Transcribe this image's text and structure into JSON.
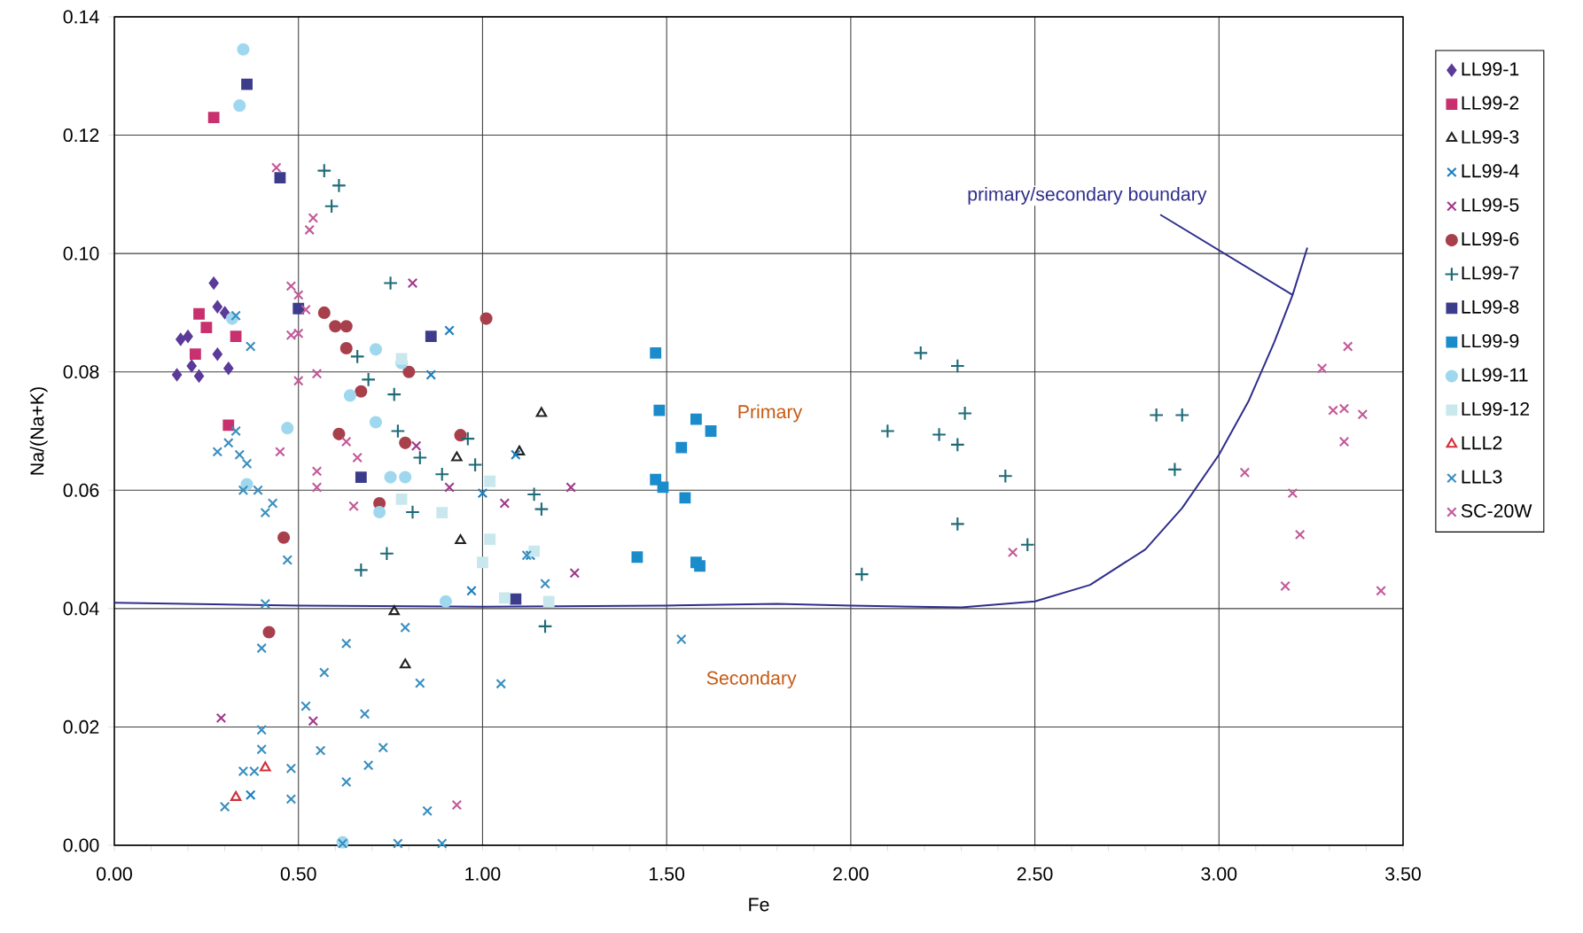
{
  "chart_data": {
    "type": "scatter",
    "xlabel": "Fe",
    "ylabel": "Na/(Na+K)",
    "xlim": [
      0,
      3.5
    ],
    "ylim": [
      0,
      0.14
    ],
    "xticks": [
      {
        "value": 0,
        "label": "0.00"
      },
      {
        "value": 0.5,
        "label": "0.50"
      },
      {
        "value": 1,
        "label": "1.00"
      },
      {
        "value": 1.5,
        "label": "1.50"
      },
      {
        "value": 2,
        "label": "2.00"
      },
      {
        "value": 2.5,
        "label": "2.50"
      },
      {
        "value": 3,
        "label": "3.00"
      },
      {
        "value": 3.5,
        "label": "3.50"
      }
    ],
    "yticks": [
      {
        "value": 0,
        "label": "0.00"
      },
      {
        "value": 0.02,
        "label": "0.02"
      },
      {
        "value": 0.04,
        "label": "0.04"
      },
      {
        "value": 0.06,
        "label": "0.06"
      },
      {
        "value": 0.08,
        "label": "0.08"
      },
      {
        "value": 0.1,
        "label": "0.10"
      },
      {
        "value": 0.12,
        "label": "0.12"
      },
      {
        "value": 0.14,
        "label": "0.14"
      }
    ],
    "grid": true,
    "legend": "right",
    "annotations": [
      {
        "text": "primary/secondary boundary",
        "x": 3.2,
        "y": 0.093
      },
      "Primary",
      "Secondary"
    ],
    "series": [
      {
        "name": "LL99-1",
        "color": "#5b3a9a",
        "marker": "diamond",
        "x": [
          0.27,
          0.28,
          0.3,
          0.18,
          0.2,
          0.21,
          0.28,
          0.17,
          0.23,
          0.31
        ],
        "values": [
          0.095,
          0.091,
          0.09,
          0.0855,
          0.086,
          0.081,
          0.083,
          0.0795,
          0.0793,
          0.0806
        ]
      },
      {
        "name": "LL99-2",
        "color": "#c8306e",
        "marker": "square",
        "x": [
          0.27,
          0.23,
          0.25,
          0.33,
          0.22,
          0.31
        ],
        "values": [
          0.123,
          0.0898,
          0.0875,
          0.086,
          0.083,
          0.071
        ]
      },
      {
        "name": "LL99-3",
        "color": "#222222",
        "marker": "triangle",
        "x": [
          1.16,
          0.93,
          1.1,
          0.94,
          0.76,
          0.79
        ],
        "values": [
          0.073,
          0.0655,
          0.0665,
          0.0515,
          0.0395,
          0.0305
        ]
      },
      {
        "name": "LL99-4",
        "color": "#1a7fc1",
        "marker": "cross",
        "x": [
          0.91,
          0.86,
          1.09,
          1.0,
          0.97,
          1.13,
          0.37
        ],
        "values": [
          0.087,
          0.0795,
          0.066,
          0.0595,
          0.043,
          0.049,
          0.0085
        ]
      },
      {
        "name": "LL99-5",
        "color": "#a03a8c",
        "marker": "cross",
        "x": [
          0.81,
          0.82,
          0.91,
          1.06,
          1.24,
          1.25,
          0.29,
          0.54
        ],
        "values": [
          0.095,
          0.0675,
          0.0605,
          0.0578,
          0.0605,
          0.046,
          0.0215,
          0.021
        ]
      },
      {
        "name": "LL99-6",
        "color": "#a8404c",
        "marker": "circle",
        "x": [
          0.57,
          0.6,
          0.63,
          0.63,
          0.67,
          0.8,
          1.01,
          0.61,
          0.79,
          0.94,
          0.72,
          0.46,
          0.42
        ],
        "values": [
          0.09,
          0.0877,
          0.0877,
          0.084,
          0.0767,
          0.08,
          0.089,
          0.0695,
          0.068,
          0.0693,
          0.0578,
          0.052,
          0.036
        ]
      },
      {
        "name": "LL99-7",
        "color": "#1e6b78",
        "marker": "plus",
        "x": [
          0.57,
          0.61,
          0.59,
          0.75,
          0.69,
          0.66,
          0.76,
          0.77,
          0.83,
          0.89,
          0.98,
          0.96,
          0.81,
          0.74,
          0.67,
          1.14,
          1.16,
          1.17,
          2.03,
          2.1,
          2.19,
          2.29,
          2.24,
          2.31,
          2.29,
          2.29,
          2.42,
          2.48,
          2.83,
          2.9,
          2.88
        ],
        "values": [
          0.114,
          0.1115,
          0.108,
          0.095,
          0.0787,
          0.0826,
          0.0762,
          0.07,
          0.0655,
          0.0627,
          0.0643,
          0.0687,
          0.0563,
          0.0493,
          0.0465,
          0.0593,
          0.0568,
          0.037,
          0.0458,
          0.07,
          0.0832,
          0.081,
          0.0694,
          0.073,
          0.0677,
          0.0543,
          0.0624,
          0.0508,
          0.0727,
          0.0727,
          0.0635
        ]
      },
      {
        "name": "LL99-8",
        "color": "#3c3c8c",
        "marker": "square",
        "x": [
          0.36,
          0.45,
          0.5,
          0.86,
          0.67,
          1.09
        ],
        "values": [
          0.1286,
          0.1128,
          0.0907,
          0.086,
          0.0622,
          0.0416
        ]
      },
      {
        "name": "LL99-9",
        "color": "#1a8ccc",
        "marker": "square",
        "x": [
          1.47,
          1.48,
          1.58,
          1.62,
          1.54,
          1.47,
          1.49,
          1.55,
          1.42,
          1.58,
          1.59
        ],
        "values": [
          0.0832,
          0.0735,
          0.072,
          0.07,
          0.0672,
          0.0618,
          0.0605,
          0.0587,
          0.0487,
          0.0478,
          0.0472
        ]
      },
      {
        "name": "LL99-11",
        "color": "#9fd8ee",
        "marker": "circle",
        "x": [
          0.35,
          0.34,
          0.32,
          0.36,
          0.47,
          0.64,
          0.71,
          0.71,
          0.78,
          0.75,
          0.79,
          0.72,
          0.9,
          0.62
        ],
        "values": [
          0.1345,
          0.125,
          0.089,
          0.061,
          0.0705,
          0.076,
          0.0838,
          0.0715,
          0.0815,
          0.0622,
          0.0622,
          0.0563,
          0.0412,
          0.0005
        ]
      },
      {
        "name": "LL99-12",
        "color": "#c8e8ee",
        "marker": "square",
        "x": [
          1.02,
          0.89,
          1.0,
          1.02,
          1.14,
          1.06,
          1.18,
          0.78,
          0.78
        ],
        "values": [
          0.0615,
          0.0562,
          0.0478,
          0.0517,
          0.0497,
          0.0418,
          0.0412,
          0.0822,
          0.0585
        ]
      },
      {
        "name": "LLL2",
        "color": "#d0303a",
        "marker": "triangle",
        "x": [
          0.41,
          0.33
        ],
        "values": [
          0.0131,
          0.0081
        ]
      },
      {
        "name": "LLL3",
        "color": "#3a8fc0",
        "marker": "cross",
        "x": [
          0.28,
          0.31,
          0.33,
          0.33,
          0.34,
          0.36,
          0.37,
          0.35,
          0.39,
          0.41,
          0.43,
          0.47,
          0.41,
          0.4,
          0.57,
          0.63,
          0.79,
          0.83,
          1.05,
          1.54,
          0.52,
          0.56,
          0.68,
          0.73,
          0.69,
          0.63,
          0.4,
          0.4,
          0.35,
          0.38,
          0.48,
          0.48,
          0.3,
          0.85,
          0.62,
          0.77,
          0.89,
          1.17,
          1.12
        ],
        "values": [
          0.0665,
          0.068,
          0.07,
          0.0895,
          0.066,
          0.0645,
          0.0843,
          0.06,
          0.06,
          0.0562,
          0.0578,
          0.0482,
          0.0408,
          0.0333,
          0.0292,
          0.0341,
          0.0368,
          0.0274,
          0.0273,
          0.0348,
          0.0235,
          0.016,
          0.0222,
          0.0165,
          0.0135,
          0.0107,
          0.0195,
          0.0162,
          0.0125,
          0.0125,
          0.013,
          0.0078,
          0.0065,
          0.0058,
          0.0003,
          0.0003,
          0.0003,
          0.0442,
          0.049
        ]
      },
      {
        "name": "SC-20W",
        "color": "#c35a9a",
        "marker": "cross",
        "x": [
          0.44,
          0.53,
          0.54,
          0.48,
          0.5,
          0.52,
          0.5,
          0.48,
          0.55,
          0.5,
          0.45,
          0.55,
          0.55,
          0.63,
          0.66,
          0.65,
          0.93,
          2.44,
          3.07,
          3.28,
          3.35,
          3.31,
          3.34,
          3.39,
          3.34,
          3.2,
          3.22,
          3.18,
          3.44
        ],
        "values": [
          0.1145,
          0.104,
          0.106,
          0.0945,
          0.093,
          0.0905,
          0.0865,
          0.0862,
          0.0797,
          0.0785,
          0.0665,
          0.0632,
          0.0605,
          0.0682,
          0.0655,
          0.0573,
          0.0068,
          0.0495,
          0.063,
          0.0806,
          0.0843,
          0.0735,
          0.0738,
          0.0728,
          0.0682,
          0.0595,
          0.0525,
          0.0438,
          0.043
        ]
      },
      {
        "type": "line",
        "color": "#2e2e8c",
        "marker": "none",
        "x": [
          0,
          0.5,
          1.0,
          1.5,
          1.8,
          2.0,
          2.3,
          2.5,
          2.65,
          2.8,
          2.9,
          3.0,
          3.08,
          3.15,
          3.2,
          3.24
        ],
        "values": [
          0.041,
          0.0405,
          0.0403,
          0.0405,
          0.0408,
          0.0405,
          0.0402,
          0.0412,
          0.044,
          0.05,
          0.057,
          0.066,
          0.075,
          0.085,
          0.093,
          0.101
        ]
      }
    ]
  }
}
